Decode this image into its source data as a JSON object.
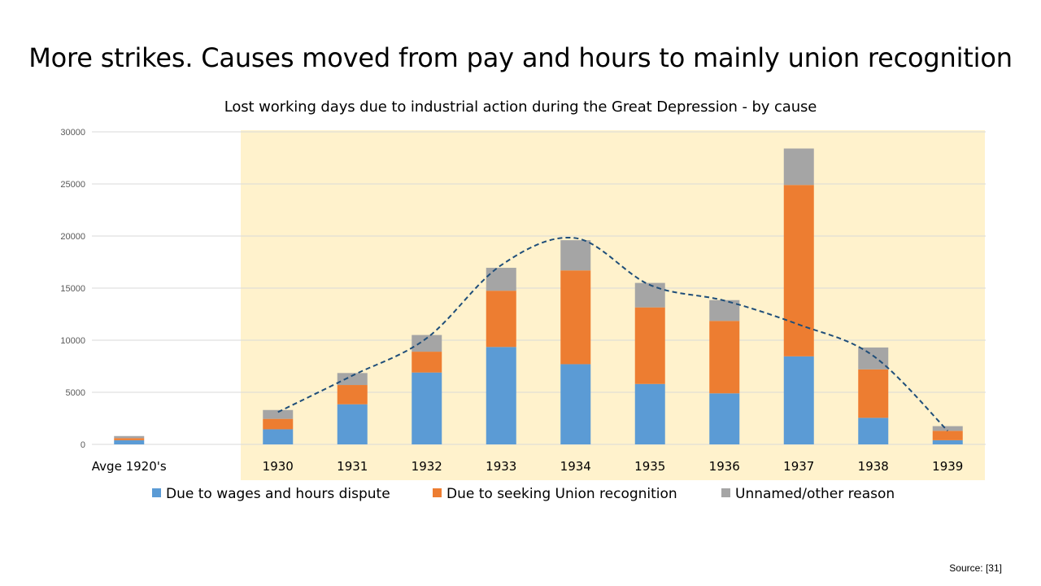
{
  "slide": {
    "title": "More strikes. Causes moved from pay and hours to mainly union recognition",
    "source": "Source: [31]"
  },
  "colors": {
    "wages": "#5b9bd5",
    "union": "#ed7d31",
    "other": "#a5a5a5",
    "highlight": "#fff2cc",
    "trend": "#1f4e79",
    "grid": "#d9d9d9"
  },
  "chart_data": {
    "type": "bar",
    "stacked": true,
    "title": "Lost working days due to industrial action during the Great Depression - by cause",
    "xlabel": "",
    "ylabel": "",
    "categories": [
      "Avge 1920's",
      "",
      "1930",
      "1931",
      "1932",
      "1933",
      "1934",
      "1935",
      "1936",
      "1937",
      "1938",
      "1939"
    ],
    "series": [
      {
        "name": "Due to wages and hours dispute",
        "color": "#5b9bd5",
        "values": [
          400,
          0,
          1450,
          3850,
          6900,
          9350,
          7700,
          5800,
          4900,
          8450,
          2550,
          400
        ]
      },
      {
        "name": "Due to seeking Union recognition",
        "color": "#ed7d31",
        "values": [
          200,
          0,
          1000,
          1850,
          2000,
          5400,
          9000,
          7350,
          6950,
          16450,
          4650,
          900
        ]
      },
      {
        "name": "Unnamed/other reason",
        "color": "#a5a5a5",
        "values": [
          200,
          0,
          850,
          1150,
          1600,
          2200,
          2900,
          2350,
          2000,
          3500,
          2100,
          450
        ]
      }
    ],
    "trend_line": {
      "style": "dashed",
      "values": [
        null,
        null,
        3100,
        6600,
        10200,
        17200,
        19800,
        15300,
        13800,
        11500,
        8500,
        1300
      ]
    },
    "highlight_range": [
      "1930",
      "1939"
    ],
    "yticks": [
      0,
      5000,
      10000,
      15000,
      20000,
      25000,
      30000
    ],
    "ylim": [
      0,
      30000
    ],
    "grid": true,
    "legend_position": "bottom"
  }
}
